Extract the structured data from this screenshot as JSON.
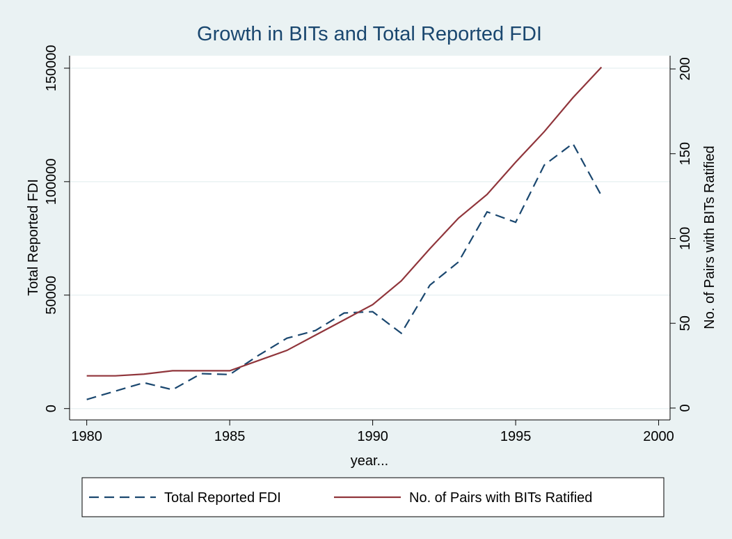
{
  "chart_data": {
    "type": "line",
    "title": "Growth in BITs and Total Reported FDI",
    "x_label": "year...",
    "y_label": "Total Reported FDI",
    "y2_label": "No. of Pairs with BITs Ratified",
    "x": [
      1980,
      1981,
      1982,
      1983,
      1984,
      1985,
      1986,
      1987,
      1988,
      1989,
      1990,
      1991,
      1992,
      1993,
      1994,
      1995,
      1996,
      1997,
      1998
    ],
    "series": [
      {
        "name": "Total Reported FDI",
        "color": "#1a476f",
        "dash": true,
        "values": [
          4000,
          7700,
          11400,
          8300,
          15400,
          15000,
          23400,
          31000,
          34400,
          42100,
          42700,
          33200,
          54400,
          64600,
          86700,
          82100,
          107300,
          116800,
          93800
        ]
      },
      {
        "name": "No. of Pairs with BITs Ratified",
        "color": "#90353b",
        "dash": false,
        "axis": "y2",
        "values": [
          19,
          19,
          20,
          22,
          22,
          22,
          28,
          34,
          43,
          52,
          61,
          75,
          94,
          112,
          126,
          145,
          163,
          183,
          201
        ]
      }
    ],
    "xlim": [
      1979.4,
      2000.4
    ],
    "xticks": [
      1980,
      1985,
      1990,
      1995,
      2000
    ],
    "ylim": [
      -5000,
      155500
    ],
    "yticks": [
      0,
      50000,
      100000,
      150000
    ],
    "y2lim": [
      -7,
      207.8
    ],
    "y2ticks": [
      0,
      50,
      100,
      150,
      200
    ],
    "grid": true
  }
}
